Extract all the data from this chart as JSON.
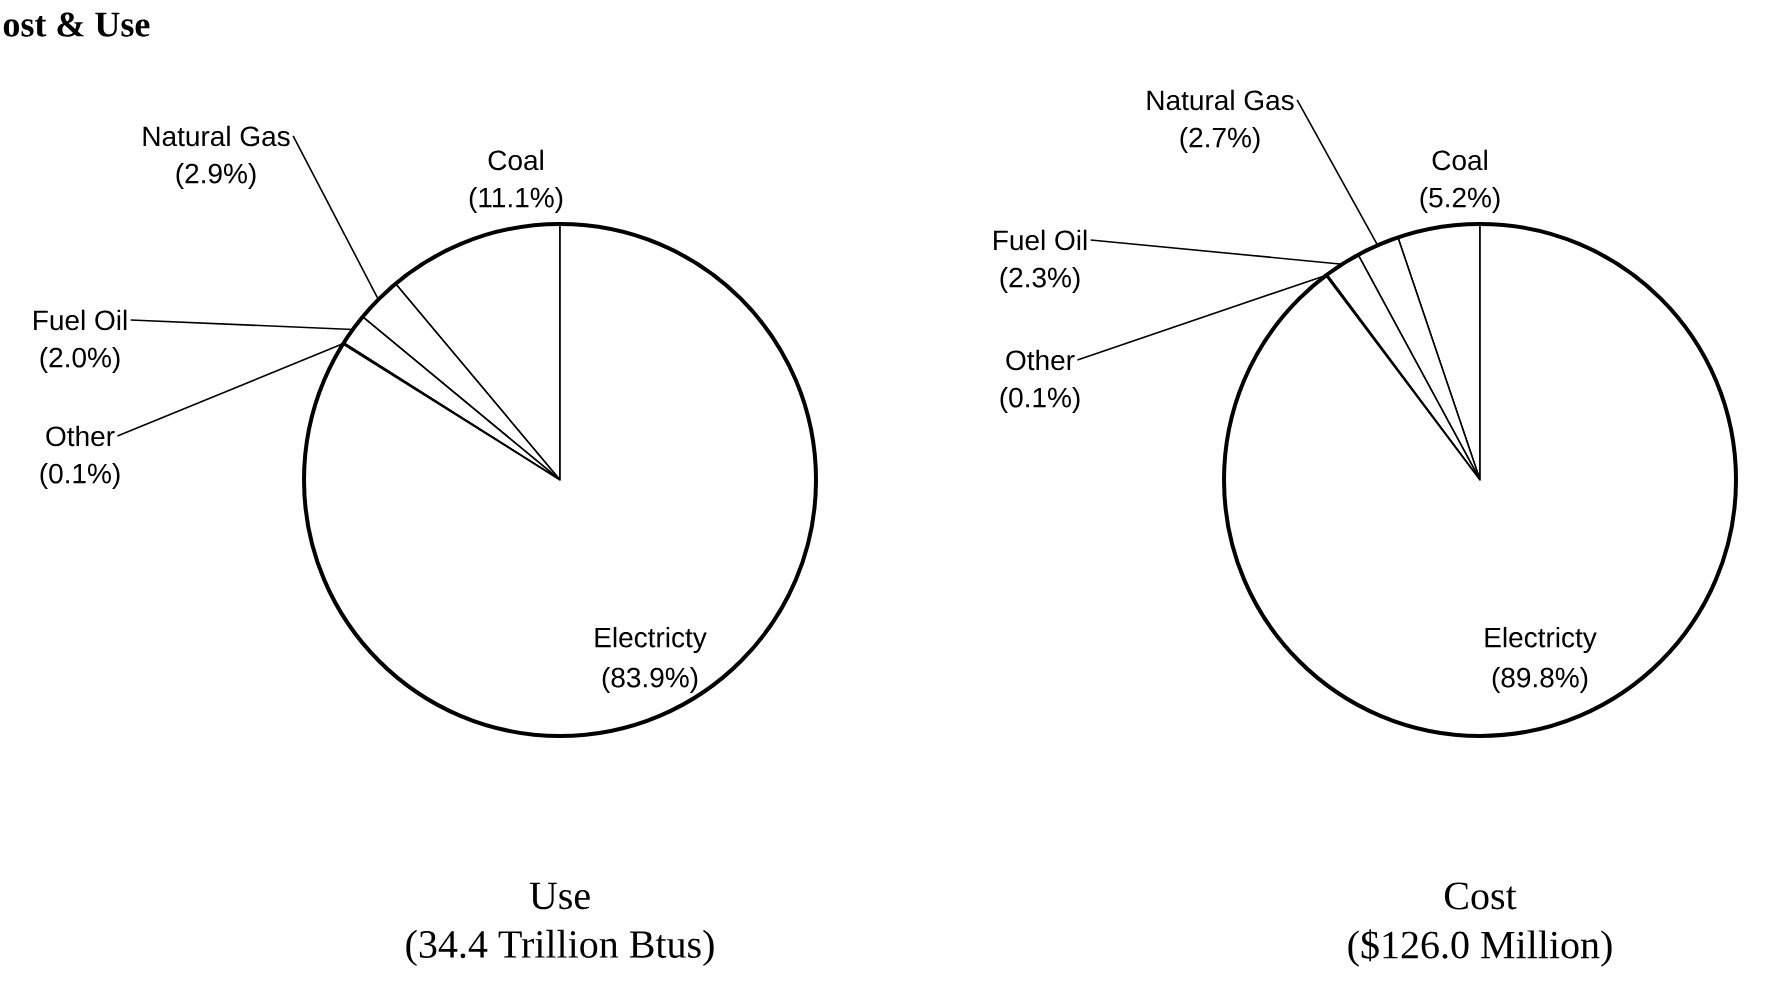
{
  "chart_data": [
    {
      "type": "pie",
      "title": "ost & Use",
      "xlabel": "Use",
      "subtitle": "(34.4 Trillion Btus)",
      "categories": [
        "Coal",
        "Natural Gas",
        "Fuel Oil",
        "Other",
        "Electricty"
      ],
      "values": [
        11.1,
        2.9,
        2.0,
        0.1,
        83.9
      ],
      "value_labels": [
        "(11.1%)",
        "(2.9%)",
        "(2.0%)",
        "(0.1%)",
        "(83.9%)"
      ],
      "colors": [
        "#ffffff",
        "#ffffff",
        "#ffffff",
        "#ffffff",
        "#ffffff"
      ]
    },
    {
      "type": "pie",
      "xlabel": "Cost",
      "subtitle": "($126.0 Million)",
      "categories": [
        "Coal",
        "Natural Gas",
        "Fuel Oil",
        "Other",
        "Electricty"
      ],
      "values": [
        5.2,
        2.7,
        2.3,
        0.1,
        89.8
      ],
      "value_labels": [
        "(5.2%)",
        "(2.7%)",
        "(2.3%)",
        "(0.1%)",
        "(89.8%)"
      ],
      "colors": [
        "#ffffff",
        "#ffffff",
        "#ffffff",
        "#ffffff",
        "#ffffff"
      ]
    }
  ]
}
